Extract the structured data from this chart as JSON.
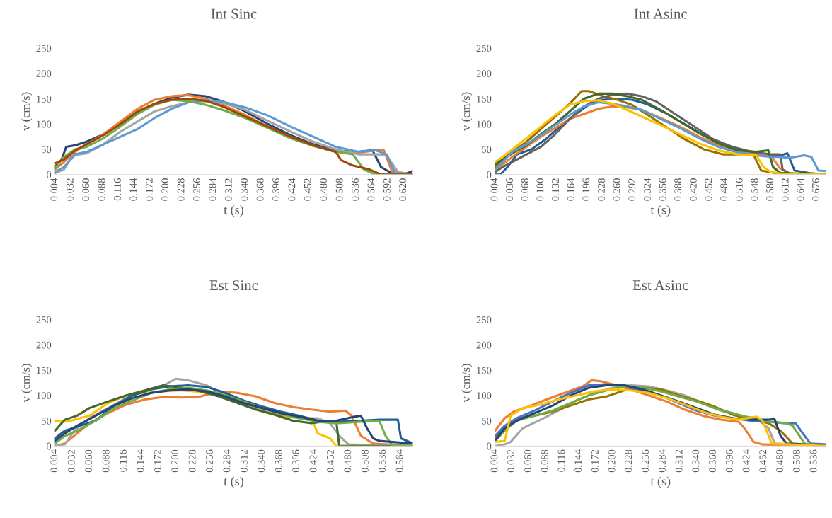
{
  "chart_data": [
    {
      "type": "line",
      "title": "Int Sinc",
      "xlabel": "t (s)",
      "ylabel": "v (cm/s)",
      "xlim": [
        0.004,
        0.636
      ],
      "ylim": [
        0,
        250
      ],
      "yticks": [
        0,
        50,
        100,
        150,
        200,
        250
      ],
      "xticks": [
        {
          "value": 0.004,
          "label": "0.004"
        },
        {
          "value": 0.032,
          "label": "0.032"
        },
        {
          "value": 0.06,
          "label": "0.060"
        },
        {
          "value": 0.088,
          "label": "0.088"
        },
        {
          "value": 0.116,
          "label": "0.116"
        },
        {
          "value": 0.144,
          "label": "0.144"
        },
        {
          "value": 0.172,
          "label": "0.172"
        },
        {
          "value": 0.2,
          "label": "0.200"
        },
        {
          "value": 0.228,
          "label": "0.228"
        },
        {
          "value": 0.256,
          "label": "0.256"
        },
        {
          "value": 0.284,
          "label": "0.284"
        },
        {
          "value": 0.312,
          "label": "0.312"
        },
        {
          "value": 0.34,
          "label": "0.340"
        },
        {
          "value": 0.368,
          "label": "0.368"
        },
        {
          "value": 0.396,
          "label": "0.396"
        },
        {
          "value": 0.424,
          "label": "0.424"
        },
        {
          "value": 0.452,
          "label": "0.452"
        },
        {
          "value": 0.48,
          "label": "0.480"
        },
        {
          "value": 0.508,
          "label": "0.508"
        },
        {
          "value": 0.536,
          "label": "0.536"
        },
        {
          "value": 0.564,
          "label": "0.564"
        },
        {
          "value": 0.592,
          "label": "0.592"
        },
        {
          "value": 0.62,
          "label": "0.620"
        }
      ],
      "series": [
        {
          "color": "#264478",
          "x": [
            0.004,
            0.016,
            0.024,
            0.04,
            0.06,
            0.09,
            0.12,
            0.15,
            0.18,
            0.21,
            0.24,
            0.27,
            0.3,
            0.34,
            0.38,
            0.42,
            0.46,
            0.5,
            0.54,
            0.565,
            0.58,
            0.6,
            0.62,
            0.636
          ],
          "values": [
            15,
            30,
            55,
            58,
            65,
            80,
            100,
            122,
            140,
            152,
            158,
            155,
            145,
            125,
            100,
            78,
            60,
            47,
            45,
            48,
            15,
            2,
            0,
            7
          ]
        },
        {
          "color": "#ed7d31",
          "x": [
            0.004,
            0.02,
            0.04,
            0.06,
            0.09,
            0.12,
            0.15,
            0.18,
            0.21,
            0.24,
            0.27,
            0.3,
            0.34,
            0.38,
            0.42,
            0.46,
            0.5,
            0.54,
            0.57,
            0.585,
            0.6,
            0.636
          ],
          "values": [
            10,
            25,
            45,
            60,
            80,
            105,
            130,
            148,
            155,
            157,
            150,
            138,
            118,
            95,
            75,
            57,
            45,
            43,
            48,
            48,
            5,
            0
          ]
        },
        {
          "color": "#a5a5a5",
          "x": [
            0.004,
            0.02,
            0.035,
            0.06,
            0.09,
            0.12,
            0.15,
            0.18,
            0.21,
            0.24,
            0.27,
            0.3,
            0.34,
            0.38,
            0.42,
            0.46,
            0.5,
            0.54,
            0.575,
            0.59,
            0.61,
            0.636
          ],
          "values": [
            3,
            10,
            38,
            42,
            60,
            85,
            105,
            125,
            135,
            143,
            145,
            142,
            128,
            106,
            85,
            65,
            50,
            40,
            40,
            38,
            5,
            0
          ]
        },
        {
          "color": "#5b9bd5",
          "x": [
            0.004,
            0.02,
            0.04,
            0.06,
            0.09,
            0.12,
            0.15,
            0.18,
            0.21,
            0.24,
            0.27,
            0.3,
            0.34,
            0.38,
            0.42,
            0.46,
            0.5,
            0.54,
            0.57,
            0.59,
            0.605,
            0.636
          ],
          "values": [
            5,
            15,
            40,
            45,
            60,
            75,
            90,
            112,
            130,
            143,
            147,
            144,
            133,
            117,
            95,
            75,
            55,
            45,
            48,
            40,
            3,
            0
          ]
        },
        {
          "color": "#70ad47",
          "x": [
            0.004,
            0.02,
            0.04,
            0.06,
            0.09,
            0.12,
            0.15,
            0.18,
            0.21,
            0.24,
            0.27,
            0.3,
            0.34,
            0.38,
            0.42,
            0.46,
            0.5,
            0.53,
            0.55,
            0.57,
            0.636
          ],
          "values": [
            12,
            35,
            50,
            55,
            72,
            95,
            120,
            138,
            148,
            145,
            138,
            128,
            112,
            92,
            72,
            57,
            45,
            40,
            10,
            0,
            0
          ]
        },
        {
          "color": "#9e480e",
          "x": [
            0.004,
            0.02,
            0.04,
            0.06,
            0.09,
            0.12,
            0.15,
            0.18,
            0.21,
            0.24,
            0.27,
            0.3,
            0.34,
            0.38,
            0.42,
            0.46,
            0.5,
            0.51,
            0.53,
            0.56,
            0.58,
            0.636
          ],
          "values": [
            22,
            30,
            48,
            60,
            78,
            100,
            125,
            140,
            148,
            150,
            146,
            135,
            115,
            95,
            75,
            58,
            45,
            28,
            18,
            10,
            0,
            0
          ]
        }
      ]
    },
    {
      "type": "line",
      "title": "Int Asinc",
      "xlabel": "t (s)",
      "ylabel": "v (cm/s)",
      "xlim": [
        0.004,
        0.696
      ],
      "ylim": [
        0,
        250
      ],
      "yticks": [
        0,
        50,
        100,
        150,
        200,
        250
      ],
      "xticks": [
        {
          "value": 0.004,
          "label": "0.004"
        },
        {
          "value": 0.036,
          "label": "0.036"
        },
        {
          "value": 0.068,
          "label": "0.068"
        },
        {
          "value": 0.1,
          "label": "0.100"
        },
        {
          "value": 0.132,
          "label": "0.132"
        },
        {
          "value": 0.164,
          "label": "0.164"
        },
        {
          "value": 0.196,
          "label": "0.196"
        },
        {
          "value": 0.228,
          "label": "0.228"
        },
        {
          "value": 0.26,
          "label": "0.260"
        },
        {
          "value": 0.292,
          "label": "0.292"
        },
        {
          "value": 0.324,
          "label": "0.324"
        },
        {
          "value": 0.356,
          "label": "0.356"
        },
        {
          "value": 0.388,
          "label": "0.388"
        },
        {
          "value": 0.42,
          "label": "0.420"
        },
        {
          "value": 0.452,
          "label": "0.452"
        },
        {
          "value": 0.484,
          "label": "0.484"
        },
        {
          "value": 0.516,
          "label": "0.516"
        },
        {
          "value": 0.548,
          "label": "0.548"
        },
        {
          "value": 0.58,
          "label": "0.580"
        },
        {
          "value": 0.612,
          "label": "0.612"
        },
        {
          "value": 0.644,
          "label": "0.644"
        },
        {
          "value": 0.676,
          "label": "0.676"
        }
      ],
      "series": [
        {
          "color": "#255e91",
          "x": [
            0.004,
            0.015,
            0.03,
            0.05,
            0.08,
            0.11,
            0.14,
            0.17,
            0.2,
            0.23,
            0.26,
            0.29,
            0.32,
            0.36,
            0.4,
            0.44,
            0.48,
            0.52,
            0.56,
            0.6,
            0.615,
            0.63,
            0.66,
            0.696
          ],
          "values": [
            0,
            0,
            15,
            40,
            50,
            70,
            95,
            118,
            138,
            148,
            150,
            148,
            140,
            122,
            100,
            78,
            58,
            45,
            38,
            38,
            42,
            8,
            3,
            0
          ]
        },
        {
          "color": "#ed7d31",
          "x": [
            0.004,
            0.02,
            0.04,
            0.07,
            0.1,
            0.13,
            0.16,
            0.19,
            0.22,
            0.25,
            0.28,
            0.31,
            0.35,
            0.39,
            0.43,
            0.47,
            0.51,
            0.55,
            0.58,
            0.6,
            0.62,
            0.696
          ],
          "values": [
            10,
            20,
            35,
            55,
            75,
            92,
            110,
            120,
            130,
            135,
            133,
            128,
            112,
            95,
            75,
            58,
            45,
            40,
            38,
            12,
            2,
            0
          ]
        },
        {
          "color": "#997300",
          "x": [
            0.004,
            0.02,
            0.04,
            0.07,
            0.1,
            0.13,
            0.16,
            0.185,
            0.2,
            0.23,
            0.26,
            0.29,
            0.32,
            0.36,
            0.4,
            0.44,
            0.48,
            0.52,
            0.545,
            0.56,
            0.59,
            0.696
          ],
          "values": [
            15,
            30,
            45,
            65,
            90,
            115,
            140,
            165,
            165,
            155,
            148,
            138,
            120,
            95,
            70,
            50,
            40,
            40,
            38,
            8,
            3,
            0
          ]
        },
        {
          "color": "#636363",
          "x": [
            0.004,
            0.02,
            0.04,
            0.07,
            0.1,
            0.13,
            0.16,
            0.19,
            0.22,
            0.25,
            0.28,
            0.31,
            0.34,
            0.38,
            0.42,
            0.46,
            0.5,
            0.54,
            0.58,
            0.6,
            0.605,
            0.62,
            0.696
          ],
          "values": [
            5,
            15,
            25,
            40,
            55,
            80,
            110,
            135,
            150,
            158,
            160,
            155,
            145,
            120,
            95,
            70,
            55,
            45,
            40,
            40,
            10,
            2,
            0
          ]
        },
        {
          "color": "#43682b",
          "x": [
            0.004,
            0.02,
            0.04,
            0.07,
            0.1,
            0.13,
            0.16,
            0.19,
            0.22,
            0.25,
            0.28,
            0.31,
            0.35,
            0.39,
            0.43,
            0.47,
            0.51,
            0.55,
            0.575,
            0.585,
            0.6,
            0.696
          ],
          "values": [
            20,
            30,
            42,
            58,
            80,
            100,
            125,
            150,
            160,
            160,
            155,
            148,
            128,
            105,
            82,
            62,
            48,
            45,
            48,
            15,
            3,
            0
          ]
        },
        {
          "color": "#5b9bd5",
          "x": [
            0.004,
            0.02,
            0.04,
            0.07,
            0.1,
            0.13,
            0.16,
            0.19,
            0.22,
            0.25,
            0.28,
            0.31,
            0.35,
            0.39,
            0.43,
            0.47,
            0.51,
            0.55,
            0.58,
            0.6,
            0.62,
            0.65,
            0.665,
            0.68,
            0.696
          ],
          "values": [
            10,
            25,
            45,
            60,
            78,
            98,
            118,
            135,
            143,
            140,
            135,
            128,
            110,
            92,
            72,
            55,
            44,
            38,
            35,
            35,
            33,
            38,
            35,
            8,
            7
          ]
        },
        {
          "color": "#ffc000",
          "x": [
            0.004,
            0.02,
            0.04,
            0.07,
            0.1,
            0.13,
            0.16,
            0.19,
            0.22,
            0.25,
            0.28,
            0.31,
            0.35,
            0.39,
            0.43,
            0.47,
            0.51,
            0.55,
            0.565,
            0.58,
            0.6,
            0.696
          ],
          "values": [
            25,
            35,
            50,
            72,
            95,
            118,
            138,
            145,
            147,
            140,
            128,
            115,
            98,
            80,
            62,
            48,
            40,
            38,
            15,
            5,
            2,
            0
          ]
        }
      ]
    },
    {
      "type": "line",
      "title": "Est Sinc",
      "xlabel": "t (s)",
      "ylabel": "v (cm/s)",
      "xlim": [
        0.004,
        0.584
      ],
      "ylim": [
        0,
        250
      ],
      "yticks": [
        0,
        50,
        100,
        150,
        200,
        250
      ],
      "xticks": [
        {
          "value": 0.004,
          "label": "0.004"
        },
        {
          "value": 0.032,
          "label": "0.032"
        },
        {
          "value": 0.06,
          "label": "0.060"
        },
        {
          "value": 0.088,
          "label": "0.088"
        },
        {
          "value": 0.116,
          "label": "0.116"
        },
        {
          "value": 0.144,
          "label": "0.144"
        },
        {
          "value": 0.172,
          "label": "0.172"
        },
        {
          "value": 0.2,
          "label": "0.200"
        },
        {
          "value": 0.228,
          "label": "0.228"
        },
        {
          "value": 0.256,
          "label": "0.256"
        },
        {
          "value": 0.284,
          "label": "0.284"
        },
        {
          "value": 0.312,
          "label": "0.312"
        },
        {
          "value": 0.34,
          "label": "0.340"
        },
        {
          "value": 0.368,
          "label": "0.368"
        },
        {
          "value": 0.396,
          "label": "0.396"
        },
        {
          "value": 0.424,
          "label": "0.424"
        },
        {
          "value": 0.452,
          "label": "0.452"
        },
        {
          "value": 0.48,
          "label": "0.480"
        },
        {
          "value": 0.508,
          "label": "0.508"
        },
        {
          "value": 0.536,
          "label": "0.536"
        },
        {
          "value": 0.564,
          "label": "0.564"
        }
      ],
      "series": [
        {
          "color": "#ed7d31",
          "x": [
            0.004,
            0.02,
            0.04,
            0.06,
            0.09,
            0.12,
            0.15,
            0.18,
            0.21,
            0.24,
            0.27,
            0.3,
            0.33,
            0.36,
            0.39,
            0.42,
            0.45,
            0.475,
            0.485,
            0.5,
            0.52,
            0.584
          ],
          "values": [
            0,
            5,
            25,
            45,
            65,
            82,
            92,
            97,
            96,
            98,
            108,
            105,
            98,
            85,
            77,
            72,
            68,
            70,
            60,
            20,
            5,
            0
          ]
        },
        {
          "color": "#a5a5a5",
          "x": [
            0.004,
            0.02,
            0.035,
            0.06,
            0.09,
            0.12,
            0.15,
            0.18,
            0.2,
            0.22,
            0.25,
            0.28,
            0.31,
            0.34,
            0.37,
            0.4,
            0.43,
            0.45,
            0.465,
            0.48,
            0.584
          ],
          "values": [
            0,
            3,
            30,
            55,
            75,
            95,
            110,
            120,
            133,
            130,
            120,
            100,
            85,
            70,
            60,
            55,
            55,
            45,
            20,
            3,
            0
          ]
        },
        {
          "color": "#ffc000",
          "x": [
            0.004,
            0.015,
            0.03,
            0.06,
            0.09,
            0.12,
            0.15,
            0.18,
            0.21,
            0.24,
            0.27,
            0.3,
            0.33,
            0.36,
            0.39,
            0.42,
            0.43,
            0.45,
            0.46,
            0.584
          ],
          "values": [
            50,
            48,
            50,
            60,
            85,
            100,
            105,
            108,
            110,
            107,
            100,
            87,
            72,
            62,
            58,
            55,
            25,
            15,
            0,
            0
          ]
        },
        {
          "color": "#255e91",
          "x": [
            0.004,
            0.02,
            0.04,
            0.07,
            0.1,
            0.13,
            0.16,
            0.19,
            0.22,
            0.25,
            0.28,
            0.31,
            0.34,
            0.37,
            0.4,
            0.43,
            0.46,
            0.5,
            0.53,
            0.56,
            0.565,
            0.575,
            0.584
          ],
          "values": [
            15,
            30,
            38,
            50,
            80,
            100,
            112,
            118,
            120,
            117,
            105,
            90,
            78,
            68,
            60,
            50,
            48,
            50,
            52,
            52,
            15,
            10,
            5
          ]
        },
        {
          "color": "#43682b",
          "x": [
            0.004,
            0.02,
            0.04,
            0.06,
            0.09,
            0.12,
            0.15,
            0.18,
            0.21,
            0.24,
            0.27,
            0.3,
            0.33,
            0.36,
            0.39,
            0.42,
            0.45,
            0.46,
            0.465,
            0.584
          ],
          "values": [
            30,
            52,
            60,
            75,
            88,
            100,
            110,
            120,
            115,
            108,
            98,
            85,
            72,
            62,
            50,
            45,
            50,
            50,
            0,
            0
          ]
        },
        {
          "color": "#70ad47",
          "x": [
            0.004,
            0.02,
            0.04,
            0.07,
            0.1,
            0.13,
            0.16,
            0.19,
            0.22,
            0.25,
            0.28,
            0.31,
            0.34,
            0.37,
            0.4,
            0.43,
            0.46,
            0.5,
            0.53,
            0.54,
            0.55,
            0.584
          ],
          "values": [
            5,
            20,
            30,
            50,
            75,
            90,
            105,
            112,
            115,
            110,
            100,
            88,
            75,
            63,
            55,
            48,
            45,
            48,
            50,
            20,
            3,
            0
          ]
        },
        {
          "color": "#264478",
          "x": [
            0.004,
            0.02,
            0.04,
            0.07,
            0.1,
            0.13,
            0.16,
            0.19,
            0.22,
            0.25,
            0.28,
            0.31,
            0.34,
            0.37,
            0.4,
            0.43,
            0.46,
            0.49,
            0.5,
            0.51,
            0.52,
            0.53,
            0.584
          ],
          "values": [
            10,
            25,
            40,
            60,
            80,
            95,
            105,
            110,
            112,
            108,
            98,
            85,
            75,
            65,
            58,
            50,
            50,
            58,
            60,
            35,
            15,
            10,
            5
          ]
        }
      ]
    },
    {
      "type": "line",
      "title": "Est Asinc",
      "xlabel": "t (s)",
      "ylabel": "v (cm/s)",
      "xlim": [
        0.004,
        0.556
      ],
      "ylim": [
        0,
        250
      ],
      "yticks": [
        0,
        50,
        100,
        150,
        200,
        250
      ],
      "xticks": [
        {
          "value": 0.004,
          "label": "0.004"
        },
        {
          "value": 0.032,
          "label": "0.032"
        },
        {
          "value": 0.06,
          "label": "0.060"
        },
        {
          "value": 0.088,
          "label": "0.088"
        },
        {
          "value": 0.116,
          "label": "0.116"
        },
        {
          "value": 0.144,
          "label": "0.144"
        },
        {
          "value": 0.172,
          "label": "0.172"
        },
        {
          "value": 0.2,
          "label": "0.200"
        },
        {
          "value": 0.228,
          "label": "0.228"
        },
        {
          "value": 0.256,
          "label": "0.256"
        },
        {
          "value": 0.284,
          "label": "0.284"
        },
        {
          "value": 0.312,
          "label": "0.312"
        },
        {
          "value": 0.34,
          "label": "0.340"
        },
        {
          "value": 0.368,
          "label": "0.368"
        },
        {
          "value": 0.396,
          "label": "0.396"
        },
        {
          "value": 0.424,
          "label": "0.424"
        },
        {
          "value": 0.452,
          "label": "0.452"
        },
        {
          "value": 0.48,
          "label": "0.480"
        },
        {
          "value": 0.508,
          "label": "0.508"
        },
        {
          "value": 0.536,
          "label": "0.536"
        }
      ],
      "series": [
        {
          "color": "#ed7d31",
          "x": [
            0.004,
            0.02,
            0.035,
            0.06,
            0.09,
            0.12,
            0.15,
            0.165,
            0.18,
            0.2,
            0.23,
            0.26,
            0.29,
            0.32,
            0.35,
            0.38,
            0.41,
            0.42,
            0.435,
            0.45,
            0.556
          ],
          "values": [
            30,
            55,
            68,
            78,
            92,
            105,
            118,
            130,
            128,
            122,
            112,
            100,
            88,
            72,
            60,
            52,
            48,
            35,
            8,
            3,
            0
          ]
        },
        {
          "color": "#a5a5a5",
          "x": [
            0.004,
            0.02,
            0.03,
            0.05,
            0.08,
            0.11,
            0.14,
            0.17,
            0.2,
            0.23,
            0.26,
            0.29,
            0.32,
            0.35,
            0.38,
            0.41,
            0.44,
            0.46,
            0.47,
            0.556
          ],
          "values": [
            0,
            3,
            8,
            35,
            52,
            70,
            90,
            105,
            115,
            120,
            118,
            110,
            100,
            85,
            70,
            60,
            55,
            35,
            5,
            0
          ]
        },
        {
          "color": "#997300",
          "x": [
            0.004,
            0.02,
            0.04,
            0.07,
            0.1,
            0.13,
            0.16,
            0.19,
            0.22,
            0.25,
            0.28,
            0.31,
            0.34,
            0.37,
            0.4,
            0.43,
            0.46,
            0.48,
            0.5,
            0.556
          ],
          "values": [
            15,
            35,
            55,
            60,
            68,
            80,
            92,
            98,
            110,
            115,
            112,
            100,
            90,
            78,
            62,
            52,
            45,
            30,
            5,
            0
          ]
        },
        {
          "color": "#4472c4",
          "x": [
            0.004,
            0.02,
            0.04,
            0.07,
            0.1,
            0.13,
            0.16,
            0.19,
            0.22,
            0.25,
            0.28,
            0.31,
            0.34,
            0.37,
            0.4,
            0.43,
            0.46,
            0.49,
            0.505,
            0.52,
            0.53,
            0.556
          ],
          "values": [
            20,
            40,
            55,
            70,
            88,
            105,
            120,
            122,
            118,
            110,
            100,
            85,
            70,
            60,
            55,
            50,
            48,
            45,
            45,
            20,
            5,
            3
          ]
        },
        {
          "color": "#70ad47",
          "x": [
            0.004,
            0.02,
            0.04,
            0.07,
            0.1,
            0.13,
            0.16,
            0.19,
            0.22,
            0.25,
            0.28,
            0.31,
            0.34,
            0.37,
            0.4,
            0.43,
            0.46,
            0.49,
            0.5,
            0.52,
            0.556
          ],
          "values": [
            10,
            30,
            50,
            60,
            70,
            85,
            100,
            110,
            118,
            115,
            108,
            98,
            88,
            75,
            65,
            55,
            48,
            45,
            40,
            5,
            0
          ]
        },
        {
          "color": "#264478",
          "x": [
            0.004,
            0.02,
            0.04,
            0.07,
            0.1,
            0.13,
            0.16,
            0.19,
            0.22,
            0.25,
            0.28,
            0.31,
            0.34,
            0.37,
            0.4,
            0.43,
            0.46,
            0.47,
            0.48,
            0.49,
            0.556
          ],
          "values": [
            10,
            35,
            50,
            65,
            80,
            100,
            115,
            120,
            120,
            112,
            100,
            88,
            75,
            62,
            55,
            52,
            52,
            53,
            20,
            5,
            0
          ]
        },
        {
          "color": "#ffc000",
          "x": [
            0.004,
            0.02,
            0.03,
            0.05,
            0.08,
            0.11,
            0.14,
            0.17,
            0.2,
            0.23,
            0.26,
            0.29,
            0.32,
            0.35,
            0.38,
            0.41,
            0.44,
            0.45,
            0.465,
            0.556
          ],
          "values": [
            8,
            10,
            60,
            75,
            82,
            92,
            100,
            108,
            112,
            110,
            105,
            95,
            82,
            68,
            58,
            52,
            58,
            50,
            5,
            0
          ]
        }
      ]
    }
  ]
}
